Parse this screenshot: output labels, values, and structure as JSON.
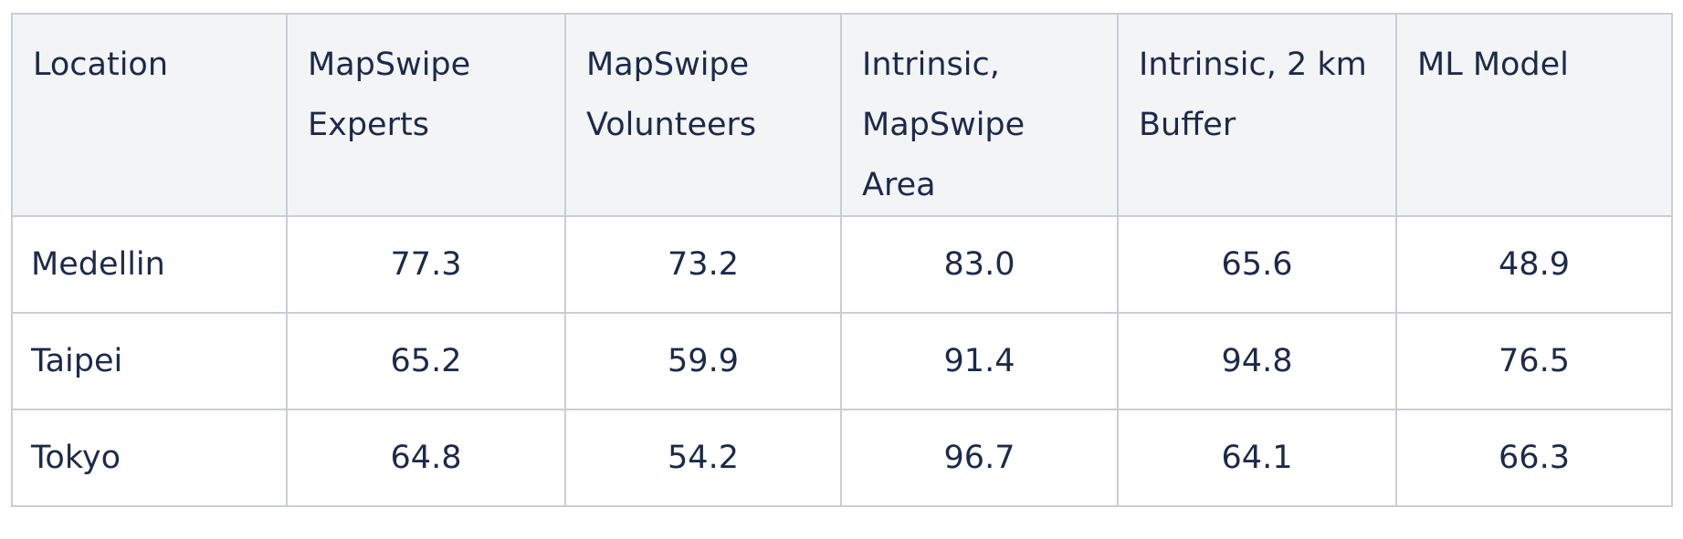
{
  "table": {
    "header": [
      "Location",
      "MapSwipe Experts",
      "MapSwipe Volunteers",
      "Intrinsic, MapSwipe Area",
      "Intrinsic, 2 km Buffer",
      "ML Model"
    ],
    "rows": [
      [
        "Medellin",
        "77.3",
        "73.2",
        "83.0",
        "65.6",
        "48.9"
      ],
      [
        "Taipei",
        "65.2",
        "59.9",
        "91.4",
        "94.8",
        "76.5"
      ],
      [
        "Tokyo",
        "64.8",
        "54.2",
        "96.7",
        "64.1",
        "66.3"
      ]
    ]
  }
}
